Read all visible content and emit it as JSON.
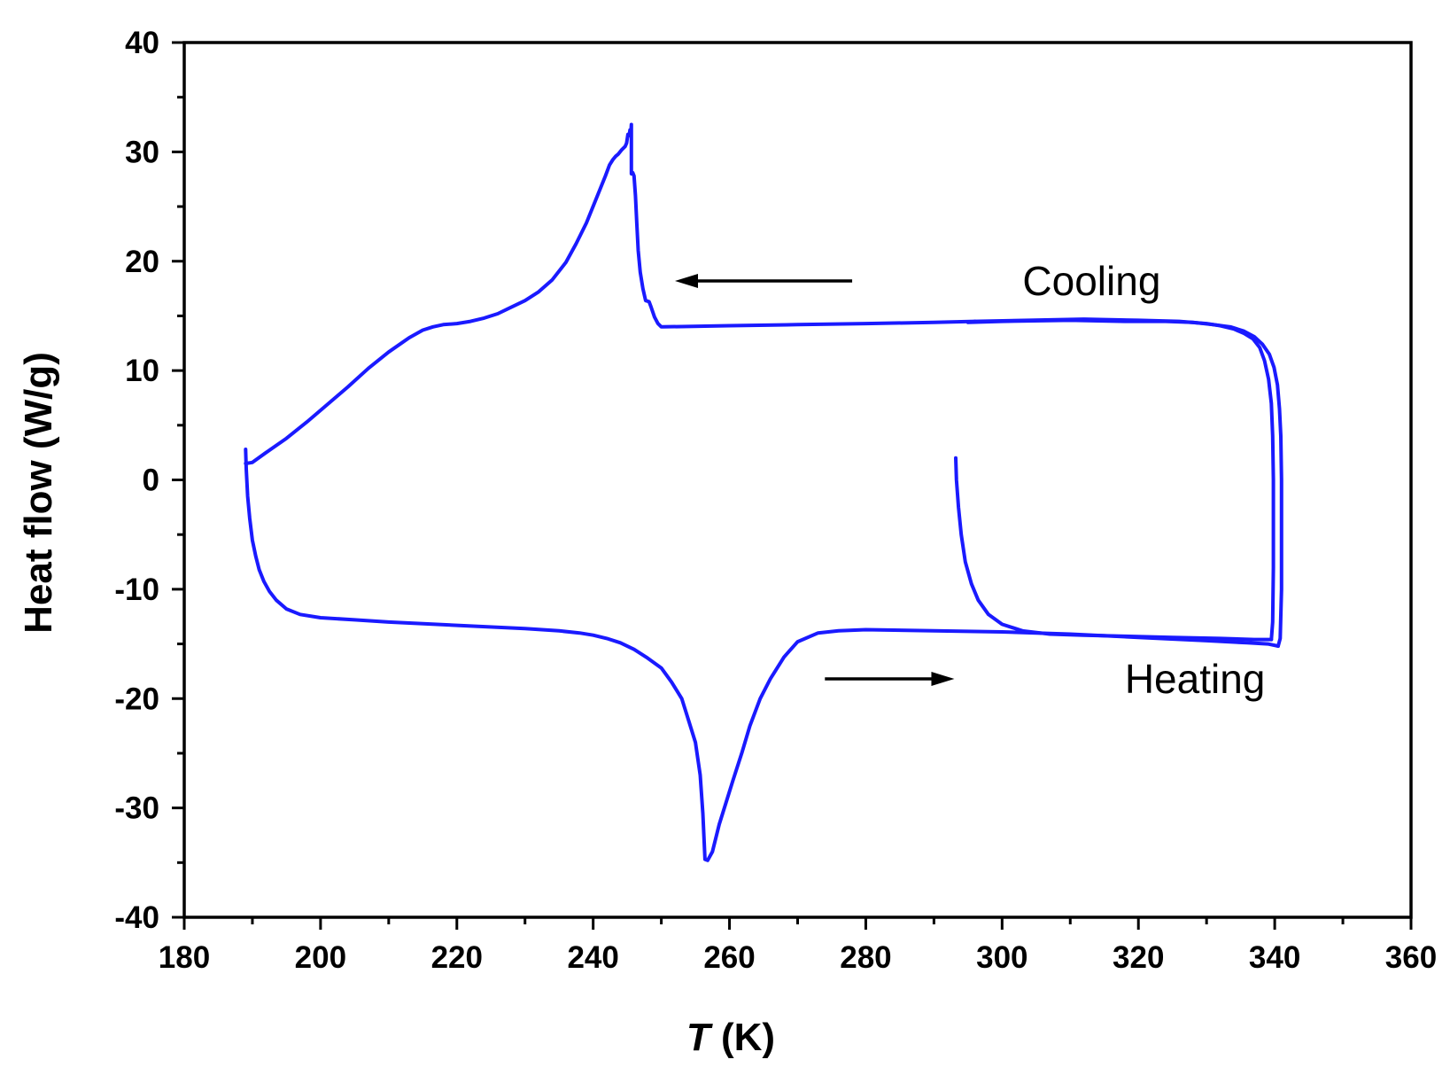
{
  "chart_data": {
    "type": "line",
    "title": "",
    "xlabel_symbol": "T",
    "xlabel_unit": " (K)",
    "ylabel": "Heat flow (W/g)",
    "xlim": [
      180,
      360
    ],
    "ylim": [
      -40,
      40
    ],
    "x_major_ticks": [
      180,
      200,
      220,
      240,
      260,
      280,
      300,
      320,
      340,
      360
    ],
    "x_tick_labels": [
      "180",
      "200",
      "220",
      "240",
      "260",
      "280",
      "300",
      "320",
      "340",
      "360"
    ],
    "y_major_ticks": [
      -40,
      -30,
      -20,
      -10,
      0,
      10,
      20,
      30,
      40
    ],
    "y_tick_labels": [
      "-40",
      "-30",
      "-20",
      "-10",
      "0",
      "10",
      "20",
      "30",
      "40"
    ],
    "minor_ticks": true,
    "grid": false,
    "line_color": "#1a1aff",
    "annotations": [
      {
        "text": "Cooling",
        "x": 303,
        "y": 18.2,
        "arrow_from": [
          278,
          18.2
        ],
        "arrow_to": [
          252,
          18.2
        ]
      },
      {
        "text": "Heating",
        "x": 318,
        "y": -18.2,
        "arrow_from": [
          274,
          -18.2
        ],
        "arrow_to": [
          293,
          -18.2
        ]
      }
    ],
    "series": [
      {
        "segment": "heating-start",
        "x": [
          293.2,
          293.3,
          293.6,
          294,
          294.6,
          295.5,
          296.5,
          298,
          300,
          303,
          307,
          312,
          318,
          325,
          332,
          337,
          339.5
        ],
        "y": [
          2,
          0,
          -2.5,
          -5,
          -7.5,
          -9.5,
          -11,
          -12.3,
          -13.2,
          -13.8,
          -14.1,
          -14.2,
          -14.3,
          -14.4,
          -14.5,
          -14.6,
          -14.6
        ]
      },
      {
        "segment": "heating-up-to-max",
        "x": [
          339.5,
          339.7,
          339.8,
          339.8,
          339.7,
          339.5,
          339.1,
          338.5,
          337.8,
          336.8,
          335.5,
          334,
          332,
          330,
          326,
          320,
          312,
          304,
          296
        ],
        "y": [
          -14.6,
          -13,
          -8,
          0,
          4,
          7,
          9.2,
          10.9,
          12.1,
          12.9,
          13.4,
          13.8,
          14.1,
          14.3,
          14.5,
          14.6,
          14.7,
          14.6,
          14.5
        ]
      },
      {
        "segment": "cooling",
        "x": [
          296,
          290,
          280,
          270,
          260,
          250.3,
          250,
          249.5,
          249,
          248.5,
          248.2,
          247.7,
          247.3,
          246.9,
          246.6,
          246.4,
          246.2,
          246,
          245.8,
          245.6,
          245.6,
          245.5,
          245.4,
          245.3,
          245.1,
          244.9,
          244.7,
          244.2,
          243.7,
          243.3,
          242.9,
          242.4,
          241.8,
          240.5,
          239,
          237.5,
          236,
          234,
          232,
          230,
          228,
          226,
          224,
          222,
          220,
          218,
          216.5,
          215,
          213,
          210,
          207,
          204,
          201,
          198,
          195,
          192,
          190,
          189
        ],
        "y": [
          14.5,
          14.4,
          14.3,
          14.2,
          14.1,
          14.0,
          14.0,
          14.3,
          14.9,
          15.8,
          16.3,
          16.4,
          17.5,
          19,
          21,
          23.5,
          26,
          27.8,
          28.1,
          28,
          32.5,
          31.5,
          32.0,
          31.5,
          31.6,
          30.8,
          30.5,
          30.2,
          29.8,
          29.6,
          29.3,
          28.8,
          27.8,
          25.8,
          23.5,
          21.6,
          19.9,
          18.3,
          17.2,
          16.4,
          15.8,
          15.2,
          14.8,
          14.5,
          14.3,
          14.2,
          14.0,
          13.7,
          13.0,
          11.7,
          10.2,
          8.5,
          6.9,
          5.3,
          3.8,
          2.5,
          1.6,
          1.5
        ]
      },
      {
        "segment": "heating",
        "x": [
          189,
          189.1,
          189.3,
          189.6,
          190,
          190.5,
          191,
          191.7,
          192.5,
          193.5,
          195,
          197,
          200,
          205,
          210,
          220,
          230,
          235,
          238,
          240,
          242,
          244,
          246,
          248,
          250,
          251.5,
          253,
          254,
          255,
          255.7,
          256.1,
          256.4,
          256.8,
          257.5,
          258.5,
          259.5,
          260.5,
          261.8,
          263,
          264.5,
          266,
          268,
          270,
          273,
          276,
          280,
          290,
          300,
          310,
          320,
          330,
          336,
          339,
          340.5
        ],
        "y": [
          2.8,
          1,
          -1.5,
          -3.5,
          -5.5,
          -7,
          -8.2,
          -9.3,
          -10.2,
          -11,
          -11.8,
          -12.3,
          -12.6,
          -12.8,
          -13,
          -13.3,
          -13.6,
          -13.8,
          -14.0,
          -14.2,
          -14.5,
          -14.9,
          -15.5,
          -16.3,
          -17.2,
          -18.5,
          -20,
          -22,
          -24,
          -27,
          -30.5,
          -34.7,
          -34.8,
          -34,
          -31.5,
          -29.5,
          -27.5,
          -25,
          -22.5,
          -20,
          -18.2,
          -16.2,
          -14.8,
          -14.0,
          -13.8,
          -13.7,
          -13.8,
          -13.9,
          -14.1,
          -14.4,
          -14.7,
          -14.9,
          -15.0,
          -15.2
        ]
      },
      {
        "segment": "heating-return",
        "x": [
          340.5,
          340.8,
          341,
          341,
          341,
          340.9,
          340.7,
          340.4,
          339.9,
          339.2,
          338.2,
          337,
          335.5,
          333.5,
          331,
          328,
          324,
          318,
          310,
          300,
          295
        ],
        "y": [
          -15.2,
          -14.5,
          -10,
          -5,
          0,
          4,
          6.5,
          8.7,
          10.3,
          11.5,
          12.4,
          13.1,
          13.6,
          14.0,
          14.2,
          14.4,
          14.5,
          14.5,
          14.6,
          14.5,
          14.4
        ]
      }
    ]
  }
}
